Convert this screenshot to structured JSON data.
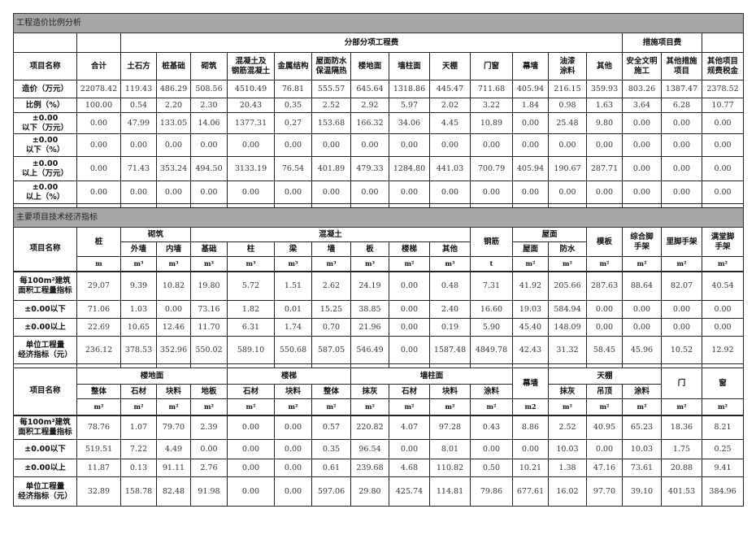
{
  "sections": [
    {
      "title": "工程造价比例分析",
      "header_rows": [
        [
          {
            "t": "",
            "c": 1
          },
          {
            "t": "",
            "c": 1
          },
          {
            "t": "分部分项工程费",
            "c": 13
          },
          {
            "t": "措施项目费",
            "c": 2
          },
          {
            "t": "",
            "c": 1
          }
        ],
        [
          {
            "t": "项目名称"
          },
          {
            "t": "合计"
          },
          {
            "t": "土石方"
          },
          {
            "t": "桩基础"
          },
          {
            "t": "砌筑"
          },
          {
            "t": "混凝土及\n钢筋混凝土"
          },
          {
            "t": "金属结构"
          },
          {
            "t": "屋面防水\n保温隔热"
          },
          {
            "t": "楼地面"
          },
          {
            "t": "墙柱面"
          },
          {
            "t": "天棚"
          },
          {
            "t": "门窗"
          },
          {
            "t": "幕墙"
          },
          {
            "t": "油漆\n涂料"
          },
          {
            "t": "其他"
          },
          {
            "t": "安全文明\n施工"
          },
          {
            "t": "其他措施\n项目"
          },
          {
            "t": "其他项目\n规费税金"
          }
        ]
      ],
      "rows": [
        {
          "label": "造价（万元）",
          "values": [
            "22078.42",
            "119.43",
            "486.29",
            "508.56",
            "4510.49",
            "76.81",
            "555.57",
            "645.64",
            "1318.86",
            "445.47",
            "711.68",
            "405.94",
            "216.15",
            "359.93",
            "803.26",
            "1387.47",
            "2378.52"
          ]
        },
        {
          "label": "比例（%）",
          "values": [
            "100.00",
            "0.54",
            "2.20",
            "2.30",
            "20.43",
            "0.35",
            "2.52",
            "2.92",
            "5.97",
            "2.02",
            "3.22",
            "1.84",
            "0.98",
            "1.63",
            "3.64",
            "6.28",
            "10.77"
          ]
        },
        {
          "label": "±0.00\n以下（万元）",
          "values": [
            "0.00",
            "47.99",
            "133.05",
            "14.06",
            "1377.31",
            "0.27",
            "153.68",
            "166.32",
            "34.06",
            "4.45",
            "10.89",
            "0.00",
            "25.48",
            "9.80",
            "0.00",
            "0.00",
            "0.00"
          ]
        },
        {
          "label": "±0.00\n以下（%）",
          "values": [
            "0.00",
            "0.00",
            "0.00",
            "0.00",
            "0.00",
            "0.00",
            "0.00",
            "0.00",
            "0.00",
            "0.00",
            "0.00",
            "0.00",
            "0.00",
            "0.00",
            "0.00",
            "0.00",
            "0.00"
          ]
        },
        {
          "label": "±0.00\n以上（万元）",
          "values": [
            "0.00",
            "71.43",
            "353.24",
            "494.50",
            "3133.19",
            "76.54",
            "401.89",
            "479.33",
            "1284.80",
            "441.03",
            "700.79",
            "405.94",
            "190.67",
            "287.71",
            "0.00",
            "0.00",
            "0.00"
          ]
        },
        {
          "label": "±0.00\n以上（%）",
          "values": [
            "0.00",
            "0.00",
            "0.00",
            "0.00",
            "0.00",
            "0.00",
            "0.00",
            "0.00",
            "0.00",
            "0.00",
            "0.00",
            "0.00",
            "0.00",
            "0.00",
            "0.00",
            "0.00",
            "0.00"
          ]
        }
      ]
    },
    {
      "title": "主要项目技术经济指标",
      "header_rows": [
        [
          {
            "t": "项目名称",
            "r": 3
          },
          {
            "t": "桩",
            "r": 2
          },
          {
            "t": "砌筑",
            "c": 2
          },
          {
            "t": "混凝土",
            "c": 7
          },
          {
            "t": "钢筋",
            "r": 2
          },
          {
            "t": "屋面",
            "c": 2
          },
          {
            "t": "模板",
            "r": 2
          },
          {
            "t": "综合脚\n手架",
            "r": 2
          },
          {
            "t": "里脚手架",
            "r": 2
          },
          {
            "t": "满堂脚\n手架",
            "r": 2
          }
        ],
        [
          {
            "t": "外墙"
          },
          {
            "t": "内墙"
          },
          {
            "t": "基础"
          },
          {
            "t": "柱"
          },
          {
            "t": "梁"
          },
          {
            "t": "墙"
          },
          {
            "t": "板"
          },
          {
            "t": "楼梯"
          },
          {
            "t": "其他"
          },
          {
            "t": "屋面"
          },
          {
            "t": "防水"
          }
        ]
      ],
      "units": [
        "m",
        "m³",
        "m³",
        "m³",
        "m³",
        "m³",
        "m³",
        "m³",
        "m²",
        "m³",
        "t",
        "m²",
        "m²",
        "m²",
        "m²",
        "m²",
        "m²"
      ],
      "rows": [
        {
          "label": "每100m²建筑\n面积工程量指标",
          "values": [
            "29.07",
            "9.39",
            "10.82",
            "19.80",
            "5.72",
            "1.51",
            "2.62",
            "24.19",
            "0.00",
            "0.48",
            "7.31",
            "41.92",
            "205.66",
            "287.63",
            "88.64",
            "82.07",
            "40.54"
          ]
        },
        {
          "label": "±0.00以下",
          "values": [
            "71.06",
            "1.03",
            "0.00",
            "73.16",
            "1.82",
            "0.01",
            "15.25",
            "38.85",
            "0.00",
            "2.40",
            "16.60",
            "19.03",
            "584.94",
            "0.00",
            "0.00",
            "0.00",
            "0.00"
          ]
        },
        {
          "label": "±0.00以上",
          "values": [
            "22.69",
            "10.65",
            "12.46",
            "11.70",
            "6.31",
            "1.74",
            "0.70",
            "21.96",
            "0.00",
            "0.19",
            "5.90",
            "45.40",
            "148.09",
            "0.00",
            "0.00",
            "0.00",
            "0.00"
          ]
        },
        {
          "label": "单位工程量\n经济指标（元）",
          "values": [
            "236.12",
            "378.53",
            "352.96",
            "550.02",
            "589.10",
            "550.68",
            "587.05",
            "546.49",
            "0.00",
            "1587.48",
            "4849.78",
            "42.43",
            "31.32",
            "58.45",
            "45.96",
            "10.52",
            "12.92"
          ]
        }
      ]
    },
    {
      "title": "",
      "header_rows": [
        [
          {
            "t": "项目名称",
            "r": 3
          },
          {
            "t": "楼地面",
            "c": 4
          },
          {
            "t": "楼梯",
            "c": 3
          },
          {
            "t": "墙柱面",
            "c": 4
          },
          {
            "t": "幕墙",
            "r": 2
          },
          {
            "t": "天棚",
            "c": 3
          },
          {
            "t": "门",
            "r": 2
          },
          {
            "t": "窗",
            "r": 2
          }
        ],
        [
          {
            "t": "整体"
          },
          {
            "t": "石材"
          },
          {
            "t": "块料"
          },
          {
            "t": "地板"
          },
          {
            "t": "石材"
          },
          {
            "t": "块料"
          },
          {
            "t": "整体"
          },
          {
            "t": "抹灰"
          },
          {
            "t": "石材"
          },
          {
            "t": "块料"
          },
          {
            "t": "涂料"
          },
          {
            "t": "抹灰"
          },
          {
            "t": "吊顶"
          },
          {
            "t": "涂料"
          }
        ]
      ],
      "units": [
        "m²",
        "m²",
        "m²",
        "m²",
        "m²",
        "m²",
        "m²",
        "m²",
        "m²",
        "m²",
        "m²",
        "m2",
        "m²",
        "m²",
        "m²",
        "m²",
        "m²"
      ],
      "rows": [
        {
          "label": "每100m²建筑\n面积工程量指标",
          "values": [
            "78.76",
            "1.07",
            "79.70",
            "2.39",
            "0.00",
            "0.00",
            "0.57",
            "220.82",
            "4.07",
            "97.28",
            "0.43",
            "8.86",
            "2.52",
            "40.95",
            "65.23",
            "18.36",
            "8.21"
          ]
        },
        {
          "label": "±0.00以下",
          "values": [
            "519.51",
            "7.22",
            "4.49",
            "0.00",
            "0.00",
            "0.00",
            "0.35",
            "96.54",
            "0.00",
            "8.01",
            "0.00",
            "0.00",
            "10.03",
            "0.00",
            "10.03",
            "1.75",
            "0.25"
          ]
        },
        {
          "label": "±0.00以上",
          "values": [
            "11.87",
            "0.13",
            "91.11",
            "2.76",
            "0.00",
            "0.00",
            "0.61",
            "239.68",
            "4.68",
            "110.82",
            "0.50",
            "10.21",
            "1.38",
            "47.16",
            "73.61",
            "20.88",
            "9.41"
          ]
        },
        {
          "label": "单位工程量\n经济指标（元）",
          "values": [
            "32.89",
            "158.78",
            "82.48",
            "91.98",
            "0.00",
            "0.00",
            "597.06",
            "29.80",
            "425.74",
            "114.81",
            "79.86",
            "677.61",
            "16.02",
            "97.70",
            "39.10",
            "401.53",
            "384.96"
          ]
        }
      ]
    }
  ]
}
